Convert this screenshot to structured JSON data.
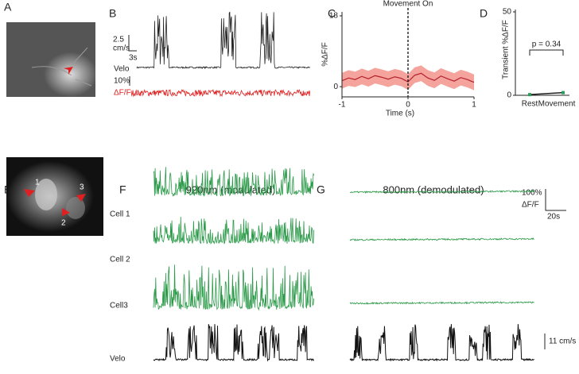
{
  "panel_labels": [
    "A",
    "B",
    "C",
    "D",
    "E",
    "F",
    "G"
  ],
  "panel_b": {
    "speed_value": "2.5",
    "speed_unit": "cm/s",
    "time_scale": "3s",
    "velo_label": "Velo",
    "df_scale": "10%",
    "df_label": "ΔF/F"
  },
  "panel_e": {
    "cell_numbers": [
      "1",
      "2",
      "3"
    ]
  },
  "panel_f": {
    "title": "920nm (modulated)"
  },
  "panel_g": {
    "title": "800nm (demodulated)"
  },
  "rows": [
    "Cell 1",
    "Cell 2",
    "Cell3",
    "Velo"
  ],
  "scale_bars": {
    "df_value": "100%",
    "df_label": "ΔF/F",
    "time": "20s",
    "speed": "11 cm/s"
  },
  "chart_data": [
    {
      "type": "line",
      "ylabel": "%ΔF/F",
      "xlabel": "Time (s)",
      "annotation": {
        "text": "Movement On",
        "x": 0
      },
      "x": [
        -1,
        -0.9,
        -0.8,
        -0.7,
        -0.6,
        -0.5,
        -0.4,
        -0.3,
        -0.2,
        -0.1,
        0,
        0.1,
        0.2,
        0.3,
        0.4,
        0.5,
        0.6,
        0.7,
        0.8,
        0.9,
        1
      ],
      "xlim": [
        -1,
        1
      ],
      "ylim": [
        -2.6,
        19
      ],
      "xticks": [
        -1,
        0,
        1
      ],
      "yticks": [
        0,
        18
      ],
      "series": [
        {
          "color": "#b3202a",
          "values": [
            1.5,
            2.2,
            1.8,
            2.6,
            2.0,
            2.8,
            2.4,
            1.9,
            2.5,
            2.1,
            1.2,
            2.9,
            3.4,
            2.2,
            1.6,
            2.7,
            2.0,
            1.4,
            2.3,
            1.8,
            1.1
          ]
        }
      ],
      "band": {
        "color": "#f4a49c",
        "lower": [
          -0.5,
          0.2,
          -0.1,
          0.6,
          0.0,
          0.8,
          0.4,
          -0.1,
          0.5,
          0.1,
          -0.8,
          0.9,
          1.4,
          0.2,
          -0.4,
          0.7,
          0.0,
          -0.6,
          0.3,
          -0.2,
          -0.9
        ],
        "upper": [
          3.5,
          4.2,
          3.8,
          4.6,
          4.0,
          4.8,
          4.4,
          3.9,
          4.5,
          4.1,
          3.2,
          4.9,
          5.4,
          4.2,
          3.6,
          4.7,
          4.0,
          3.4,
          4.3,
          3.8,
          3.1
        ]
      }
    },
    {
      "type": "dot",
      "ylabel": "Transient %ΔF/F",
      "categories": [
        "Rest",
        "Movement"
      ],
      "values": [
        0.4,
        1.6
      ],
      "color": "#2e9b5a",
      "ylim": [
        0,
        50
      ],
      "yticks": [
        0,
        50
      ],
      "annotation": "p = 0.34"
    }
  ]
}
